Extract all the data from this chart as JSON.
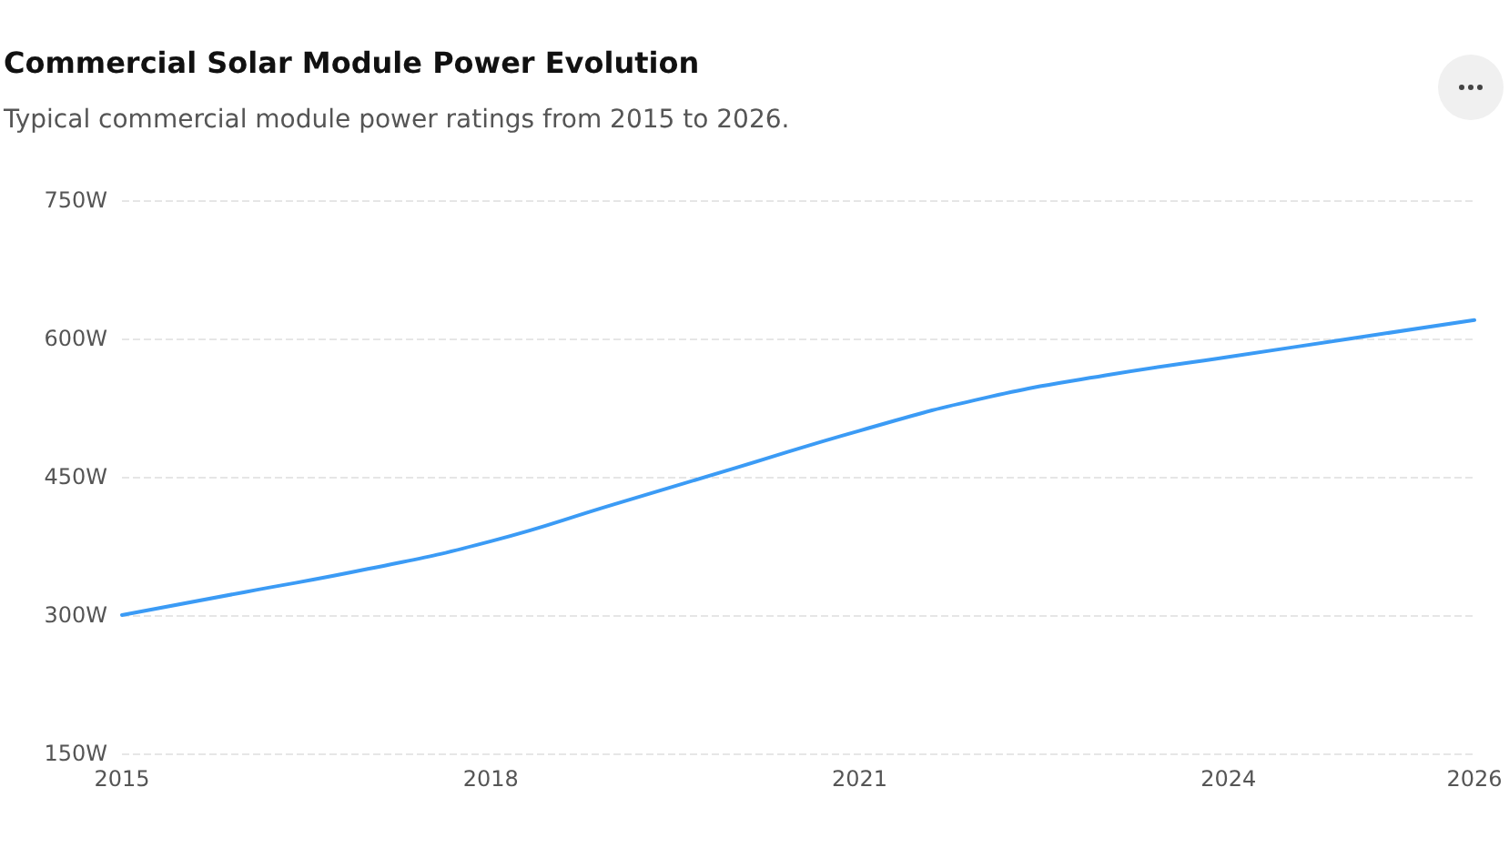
{
  "chart_data": {
    "type": "line",
    "title": "Commercial Solar Module Power Evolution",
    "subtitle": "Typical commercial module power ratings from 2015 to 2026.",
    "x": [
      2015,
      2016,
      2017,
      2018,
      2019,
      2020,
      2021,
      2022,
      2023,
      2024,
      2025,
      2026
    ],
    "series": [
      {
        "color": "#3b9bf5",
        "values": [
          300,
          325,
          350,
          380,
          420,
          460,
          500,
          535,
          560,
          580,
          600,
          620
        ]
      }
    ],
    "xlim": [
      2015,
      2026
    ],
    "xticks": [
      2015,
      2018,
      2021,
      2024,
      2026
    ],
    "ylim": [
      150,
      750
    ],
    "yticks": [
      {
        "value": 150,
        "label": "150W"
      },
      {
        "value": 300,
        "label": "300W"
      },
      {
        "value": 450,
        "label": "450W"
      },
      {
        "value": 600,
        "label": "600W"
      },
      {
        "value": 750,
        "label": "750W"
      }
    ],
    "grid": "y",
    "marker": "none",
    "line_style": "solid"
  }
}
